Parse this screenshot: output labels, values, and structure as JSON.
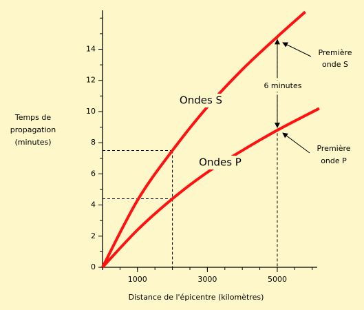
{
  "chart_data": {
    "type": "line",
    "xlabel": "Distance de l'épicentre (kilomètres)",
    "ylabel": [
      "Temps de",
      "propagation",
      "(minutes)"
    ],
    "xlim": [
      0,
      6300
    ],
    "ylim": [
      0,
      16.5
    ],
    "xticks": [
      1000,
      3000,
      5000
    ],
    "xminorticks": [
      500,
      1000,
      1500,
      2000,
      2500,
      3000,
      3500,
      4000,
      4500,
      5000,
      5500,
      6000
    ],
    "yticks": [
      0,
      2,
      4,
      6,
      8,
      10,
      12,
      14
    ],
    "yminorticks": [
      1,
      3,
      5,
      7,
      9,
      11,
      13,
      15,
      16
    ],
    "series": [
      {
        "name": "Ondes S",
        "color": "#ff1111",
        "x": [
          0,
          1000,
          2000,
          3000,
          4000,
          5000,
          5800
        ],
        "values": [
          0,
          4.3,
          7.5,
          10.3,
          12.7,
          14.8,
          16.4
        ]
      },
      {
        "name": "Ondes P",
        "color": "#ff1111",
        "x": [
          0,
          1000,
          2000,
          3000,
          4000,
          5000,
          6200
        ],
        "values": [
          0,
          2.4,
          4.4,
          6.1,
          7.5,
          8.8,
          10.2
        ]
      }
    ],
    "annotations": {
      "gap": "6 minutes",
      "first_s": [
        "Première",
        "onde S"
      ],
      "first_p": [
        "Première",
        "onde P"
      ]
    }
  }
}
